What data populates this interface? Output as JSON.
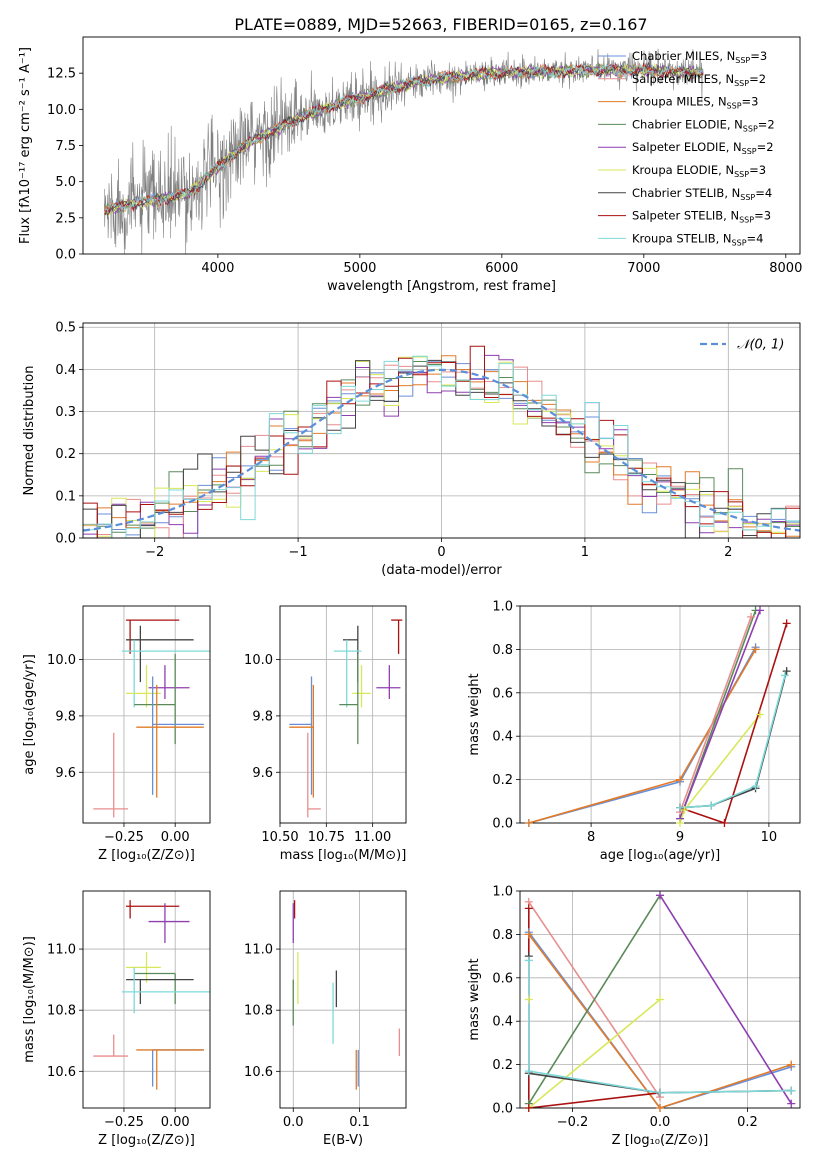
{
  "figure_title": "PLATE=0889, MJD=52663, FIBERID=0165, z=0.167",
  "chart_data": [
    {
      "id": "spectrum",
      "type": "line",
      "xlabel": "wavelength [Angstrom, rest frame]",
      "ylabel": "Flux [fλ10⁻¹⁷ erg cm⁻² s⁻¹ A⁻¹]",
      "xlim": [
        3050,
        8100
      ],
      "ylim": [
        0,
        15
      ],
      "xticks": [
        4000,
        5000,
        6000,
        7000,
        8000
      ],
      "yticks": [
        0.0,
        2.5,
        5.0,
        7.5,
        10.0,
        12.5
      ],
      "continuum": {
        "x": [
          3200,
          3400,
          3600,
          3800,
          4000,
          4200,
          4400,
          4600,
          4800,
          5000,
          5200,
          5400,
          5600,
          5800,
          6000,
          6200,
          6400,
          6600,
          6800,
          7000,
          7200,
          7400
        ],
        "y": [
          3.0,
          3.5,
          3.8,
          4.2,
          6.0,
          7.6,
          8.6,
          9.5,
          10.2,
          10.8,
          11.4,
          11.9,
          12.2,
          12.4,
          12.5,
          12.6,
          12.6,
          12.7,
          12.7,
          12.7,
          12.6,
          12.5
        ]
      },
      "series": [
        {
          "name": "Chabrier MILES, N_SSP=3",
          "color": "#6a8fd8"
        },
        {
          "name": "Salpeter MILES, N_SSP=2",
          "color": "#e88e8e"
        },
        {
          "name": "Kroupa MILES, N_SSP=3",
          "color": "#e07b2a"
        },
        {
          "name": "Chabrier ELODIE, N_SSP=2",
          "color": "#5a8a5a"
        },
        {
          "name": "Salpeter ELODIE, N_SSP=2",
          "color": "#8e3fb0"
        },
        {
          "name": "Kroupa ELODIE, N_SSP=3",
          "color": "#d8e85a"
        },
        {
          "name": "Chabrier STELIB, N_SSP=4",
          "color": "#444444"
        },
        {
          "name": "Salpeter STELIB, N_SSP=3",
          "color": "#aa1111"
        },
        {
          "name": "Kroupa STELIB, N_SSP=4",
          "color": "#7fd8d8"
        }
      ],
      "data_color": "#808080",
      "legend_placement": "right"
    },
    {
      "id": "residuals",
      "type": "histogram",
      "xlabel": "(data-model)/error",
      "ylabel": "Normed distribution",
      "xlim": [
        -2.5,
        2.5
      ],
      "ylim": [
        0,
        0.51
      ],
      "xticks": [
        -2,
        -1,
        0,
        1,
        2
      ],
      "yticks": [
        0.0,
        0.1,
        0.2,
        0.3,
        0.4,
        0.5
      ],
      "bin_width": 0.1,
      "reference_curve": {
        "name": "𝒩(0, 1)",
        "style": "dashed",
        "color": "#5b8fd9"
      },
      "legend_placement": "top-right",
      "grid": true
    },
    {
      "id": "age-vs-Z",
      "type": "errorbar",
      "xlabel": "Z [log₁₀(Z/Z⊙)]",
      "ylabel": "age  [log₁₀(age/yr)]",
      "xlim": [
        -0.45,
        0.17
      ],
      "ylim": [
        9.42,
        10.19
      ],
      "xticks": [
        -0.25,
        0.0
      ],
      "yticks": [
        9.6,
        9.8,
        10.0
      ],
      "points": [
        {
          "color": "#aa1111",
          "x": -0.22,
          "xerr": [
            0.02,
            0.24
          ],
          "y": 10.14,
          "yerr": [
            0.12,
            0.0
          ]
        },
        {
          "color": "#444444",
          "x": -0.17,
          "xerr": [
            0.07,
            0.26
          ],
          "y": 10.07,
          "yerr": [
            0.15,
            0.05
          ]
        },
        {
          "color": "#7fd8d8",
          "x": -0.2,
          "xerr": [
            0.06,
            0.38
          ],
          "y": 10.03,
          "yerr": [
            0.2,
            0.04
          ]
        },
        {
          "color": "#8e3fb0",
          "x": -0.05,
          "xerr": [
            0.08,
            0.12
          ],
          "y": 9.9,
          "yerr": [
            0.04,
            0.08
          ]
        },
        {
          "color": "#d8e85a",
          "x": -0.14,
          "xerr": [
            0.1,
            0.07
          ],
          "y": 9.88,
          "yerr": [
            0.05,
            0.1
          ]
        },
        {
          "color": "#5a8a5a",
          "x": 0.0,
          "xerr": [
            0.2,
            0.0
          ],
          "y": 9.84,
          "yerr": [
            0.14,
            0.18
          ]
        },
        {
          "color": "#6a8fd8",
          "x": -0.11,
          "xerr": [
            0.0,
            0.25
          ],
          "y": 9.77,
          "yerr": [
            0.25,
            0.17
          ]
        },
        {
          "color": "#e07b2a",
          "x": -0.09,
          "xerr": [
            0.1,
            0.23
          ],
          "y": 9.76,
          "yerr": [
            0.25,
            0.15
          ]
        },
        {
          "color": "#e88e8e",
          "x": -0.3,
          "xerr": [
            0.1,
            0.07
          ],
          "y": 9.47,
          "yerr": [
            0.03,
            0.27
          ]
        }
      ]
    },
    {
      "id": "age-vs-mass",
      "type": "errorbar",
      "xlabel": "mass [log₁₀(M/M⊙)]",
      "ylabel": "",
      "xlim": [
        10.5,
        11.18
      ],
      "ylim": [
        9.42,
        10.19
      ],
      "xticks": [
        10.5,
        10.75,
        11.0
      ],
      "yticks": [
        9.6,
        9.8,
        10.0
      ],
      "points": [
        {
          "color": "#aa1111",
          "x": 11.14,
          "xerr": [
            0.04,
            0.02
          ],
          "y": 10.14,
          "yerr": [
            0.12,
            0.0
          ]
        },
        {
          "color": "#444444",
          "x": 10.92,
          "xerr": [
            0.08,
            0.0
          ],
          "y": 10.07,
          "yerr": [
            0.15,
            0.05
          ]
        },
        {
          "color": "#7fd8d8",
          "x": 10.86,
          "xerr": [
            0.07,
            0.08
          ],
          "y": 10.03,
          "yerr": [
            0.2,
            0.04
          ]
        },
        {
          "color": "#8e3fb0",
          "x": 11.09,
          "xerr": [
            0.07,
            0.06
          ],
          "y": 9.9,
          "yerr": [
            0.04,
            0.08
          ]
        },
        {
          "color": "#d8e85a",
          "x": 10.94,
          "xerr": [
            0.05,
            0.05
          ],
          "y": 9.88,
          "yerr": [
            0.05,
            0.1
          ]
        },
        {
          "color": "#5a8a5a",
          "x": 10.92,
          "xerr": [
            0.1,
            0.0
          ],
          "y": 9.84,
          "yerr": [
            0.14,
            0.18
          ]
        },
        {
          "color": "#6a8fd8",
          "x": 10.67,
          "xerr": [
            0.12,
            0.0
          ],
          "y": 9.77,
          "yerr": [
            0.25,
            0.17
          ]
        },
        {
          "color": "#e07b2a",
          "x": 10.68,
          "xerr": [
            0.13,
            0.0
          ],
          "y": 9.76,
          "yerr": [
            0.25,
            0.15
          ]
        },
        {
          "color": "#e88e8e",
          "x": 10.65,
          "xerr": [
            0.0,
            0.07
          ],
          "y": 9.47,
          "yerr": [
            0.03,
            0.27
          ]
        }
      ]
    },
    {
      "id": "weight-vs-age",
      "type": "line",
      "xlabel": "age  [log₁₀(age/yr)]",
      "ylabel": "mass weight",
      "xlim": [
        7.2,
        10.35
      ],
      "ylim": [
        0,
        1
      ],
      "xticks": [
        8,
        9,
        10
      ],
      "yticks": [
        0.0,
        0.2,
        0.4,
        0.6,
        0.8,
        1.0
      ],
      "grid": true,
      "series": [
        {
          "color": "#6a8fd8",
          "x": [
            7.3,
            9.0,
            9.85
          ],
          "y": [
            0.0,
            0.19,
            0.81
          ]
        },
        {
          "color": "#e07b2a",
          "x": [
            7.3,
            9.0,
            9.85
          ],
          "y": [
            0.0,
            0.2,
            0.8
          ]
        },
        {
          "color": "#e88e8e",
          "x": [
            9.0,
            9.8
          ],
          "y": [
            0.05,
            0.95
          ]
        },
        {
          "color": "#5a8a5a",
          "x": [
            9.0,
            9.85
          ],
          "y": [
            0.02,
            0.98
          ]
        },
        {
          "color": "#8e3fb0",
          "x": [
            9.0,
            9.9
          ],
          "y": [
            0.02,
            0.98
          ]
        },
        {
          "color": "#d8e85a",
          "x": [
            9.0,
            9.05,
            9.9
          ],
          "y": [
            0.0,
            0.06,
            0.5
          ]
        },
        {
          "color": "#444444",
          "x": [
            9.0,
            9.35,
            9.85,
            10.2
          ],
          "y": [
            0.07,
            0.08,
            0.16,
            0.7
          ]
        },
        {
          "color": "#aa1111",
          "x": [
            9.0,
            9.5,
            10.2
          ],
          "y": [
            0.07,
            0.0,
            0.92
          ]
        },
        {
          "color": "#7fd8d8",
          "x": [
            9.0,
            9.35,
            9.85,
            10.18
          ],
          "y": [
            0.07,
            0.08,
            0.17,
            0.68
          ]
        }
      ]
    },
    {
      "id": "mass-vs-Z",
      "type": "errorbar",
      "xlabel": "Z [log₁₀(Z/Z⊙)]",
      "ylabel": "mass [log₁₀(M/M⊙)]",
      "xlim": [
        -0.45,
        0.17
      ],
      "ylim": [
        10.48,
        11.19
      ],
      "xticks": [
        -0.25,
        0.0
      ],
      "yticks": [
        10.6,
        10.8,
        11.0
      ],
      "points": [
        {
          "color": "#aa1111",
          "x": -0.22,
          "xerr": [
            0.02,
            0.24
          ],
          "y": 11.14,
          "yerr": [
            0.04,
            0.02
          ]
        },
        {
          "color": "#8e3fb0",
          "x": -0.05,
          "xerr": [
            0.08,
            0.12
          ],
          "y": 11.09,
          "yerr": [
            0.07,
            0.06
          ]
        },
        {
          "color": "#d8e85a",
          "x": -0.14,
          "xerr": [
            0.1,
            0.07
          ],
          "y": 10.94,
          "yerr": [
            0.05,
            0.05
          ]
        },
        {
          "color": "#5a8a5a",
          "x": 0.0,
          "xerr": [
            0.2,
            0.0
          ],
          "y": 10.92,
          "yerr": [
            0.1,
            0.0
          ]
        },
        {
          "color": "#444444",
          "x": -0.17,
          "xerr": [
            0.07,
            0.26
          ],
          "y": 10.9,
          "yerr": [
            0.08,
            0.0
          ]
        },
        {
          "color": "#7fd8d8",
          "x": -0.2,
          "xerr": [
            0.06,
            0.38
          ],
          "y": 10.86,
          "yerr": [
            0.07,
            0.08
          ]
        },
        {
          "color": "#6a8fd8",
          "x": -0.11,
          "xerr": [
            0.0,
            0.25
          ],
          "y": 10.67,
          "yerr": [
            0.12,
            0.0
          ]
        },
        {
          "color": "#e07b2a",
          "x": -0.09,
          "xerr": [
            0.1,
            0.23
          ],
          "y": 10.67,
          "yerr": [
            0.13,
            0.0
          ]
        },
        {
          "color": "#e88e8e",
          "x": -0.3,
          "xerr": [
            0.1,
            0.07
          ],
          "y": 10.65,
          "yerr": [
            0.0,
            0.07
          ]
        }
      ]
    },
    {
      "id": "mass-vs-EBV",
      "type": "errorbar",
      "xlabel": "E(B-V)",
      "ylabel": "",
      "xlim": [
        -0.02,
        0.17
      ],
      "ylim": [
        10.48,
        11.19
      ],
      "xticks": [
        0.0,
        0.1
      ],
      "yticks": [
        10.6,
        10.8,
        11.0
      ],
      "points": [
        {
          "color": "#aa1111",
          "x": 0.002,
          "y": 11.14,
          "yerr": [
            0.04,
            0.02
          ]
        },
        {
          "color": "#8e3fb0",
          "x": 0.0,
          "y": 11.09,
          "yerr": [
            0.07,
            0.06
          ]
        },
        {
          "color": "#d8e85a",
          "x": 0.007,
          "y": 10.94,
          "yerr": [
            0.12,
            0.05
          ]
        },
        {
          "color": "#5a8a5a",
          "x": 0.0,
          "y": 10.9,
          "yerr": [
            0.15,
            0.0
          ]
        },
        {
          "color": "#444444",
          "x": 0.065,
          "y": 10.88,
          "yerr": [
            0.07,
            0.05
          ]
        },
        {
          "color": "#7fd8d8",
          "x": 0.06,
          "y": 10.83,
          "yerr": [
            0.14,
            0.06
          ]
        },
        {
          "color": "#6a8fd8",
          "x": 0.098,
          "y": 10.67,
          "yerr": [
            0.12,
            0.0
          ]
        },
        {
          "color": "#e07b2a",
          "x": 0.095,
          "y": 10.67,
          "yerr": [
            0.13,
            0.0
          ]
        },
        {
          "color": "#e88e8e",
          "x": 0.16,
          "y": 10.69,
          "yerr": [
            0.04,
            0.05
          ]
        }
      ]
    },
    {
      "id": "weight-vs-Z",
      "type": "line",
      "xlabel": "Z [log₁₀(Z/Z⊙)]",
      "ylabel": "mass weight",
      "xlim": [
        -0.32,
        0.32
      ],
      "ylim": [
        0,
        1
      ],
      "xticks": [
        -0.2,
        0.0,
        0.2
      ],
      "yticks": [
        0.0,
        0.2,
        0.4,
        0.6,
        0.8,
        1.0
      ],
      "grid": true,
      "series": [
        {
          "color": "#6a8fd8",
          "x": [
            -0.3,
            0.0,
            0.3
          ],
          "y": [
            0.81,
            0.0,
            0.19
          ]
        },
        {
          "color": "#e07b2a",
          "x": [
            -0.3,
            0.0,
            0.3
          ],
          "y": [
            0.8,
            0.0,
            0.2
          ]
        },
        {
          "color": "#e88e8e",
          "x": [
            -0.3,
            0.0
          ],
          "y": [
            0.95,
            0.05
          ]
        },
        {
          "color": "#5a8a5a",
          "x": [
            -0.3,
            0.0
          ],
          "y": [
            0.02,
            0.98
          ]
        },
        {
          "color": "#8e3fb0",
          "x": [
            0.0,
            0.3
          ],
          "y": [
            0.98,
            0.02
          ]
        },
        {
          "color": "#d8e85a",
          "x": [
            -0.3,
            0.0
          ],
          "y": [
            0.0,
            0.5
          ]
        },
        {
          "color": "#444444",
          "x": [
            -0.3,
            -0.3,
            0.0,
            0.3
          ],
          "y": [
            0.7,
            0.16,
            0.07,
            0.08
          ]
        },
        {
          "color": "#aa1111",
          "x": [
            -0.3,
            -0.3,
            0.0
          ],
          "y": [
            0.92,
            0.0,
            0.07
          ]
        },
        {
          "color": "#7fd8d8",
          "x": [
            -0.3,
            -0.3,
            0.0,
            0.3
          ],
          "y": [
            0.68,
            0.17,
            0.07,
            0.08
          ]
        },
        {
          "color": "#d8e85a",
          "x": [
            -0.3
          ],
          "y": [
            0.5
          ]
        }
      ]
    }
  ]
}
